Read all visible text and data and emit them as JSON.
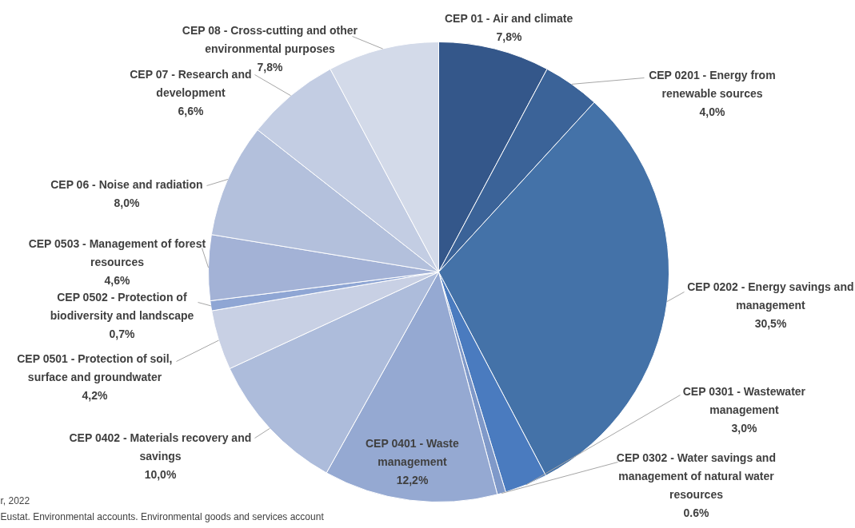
{
  "chart_data": {
    "type": "pie",
    "categories": [
      "CEP 01 - Air and climate",
      "CEP 0201 - Energy from renewable sources",
      "CEP 0202 - Energy savings and management",
      "CEP 0301 - Wastewater management",
      "CEP 0302 - Water savings and management of natural water resources",
      "CEP 0401 - Waste management",
      "CEP 0402 - Materials recovery and savings",
      "CEP 0501 - Protection of soil, surface and groundwater",
      "CEP 0502 - Protection of biodiversity and landscape",
      "CEP 0503 - Management of forest resources",
      "CEP 06 - Noise and radiation",
      "CEP 07 - Research and development",
      "CEP 08 - Cross-cutting and other environmental purposes"
    ],
    "values": [
      7.8,
      4.0,
      30.5,
      3.0,
      0.6,
      12.2,
      10.0,
      4.2,
      0.7,
      4.6,
      8.0,
      6.6,
      7.8
    ],
    "value_labels": [
      "7,8%",
      "4,0%",
      "30,5%",
      "3,0%",
      "0.6%",
      "12,2%",
      "10,0%",
      "4,2%",
      "0,7%",
      "4,6%",
      "8,0%",
      "6,6%",
      "7,8%"
    ],
    "colors": [
      "#34578a",
      "#3b6398",
      "#4472a8",
      "#4a7bbf",
      "#7f99c9",
      "#95a9d2",
      "#adbcdb",
      "#c8d0e4",
      "#8fa6d4",
      "#a3b2d6",
      "#b3c0dc",
      "#c3cde3",
      "#d3dae9"
    ],
    "annotations": [
      "r, 2022",
      "Eustat. Environmental accounts. Environmental goods and services account"
    ]
  }
}
